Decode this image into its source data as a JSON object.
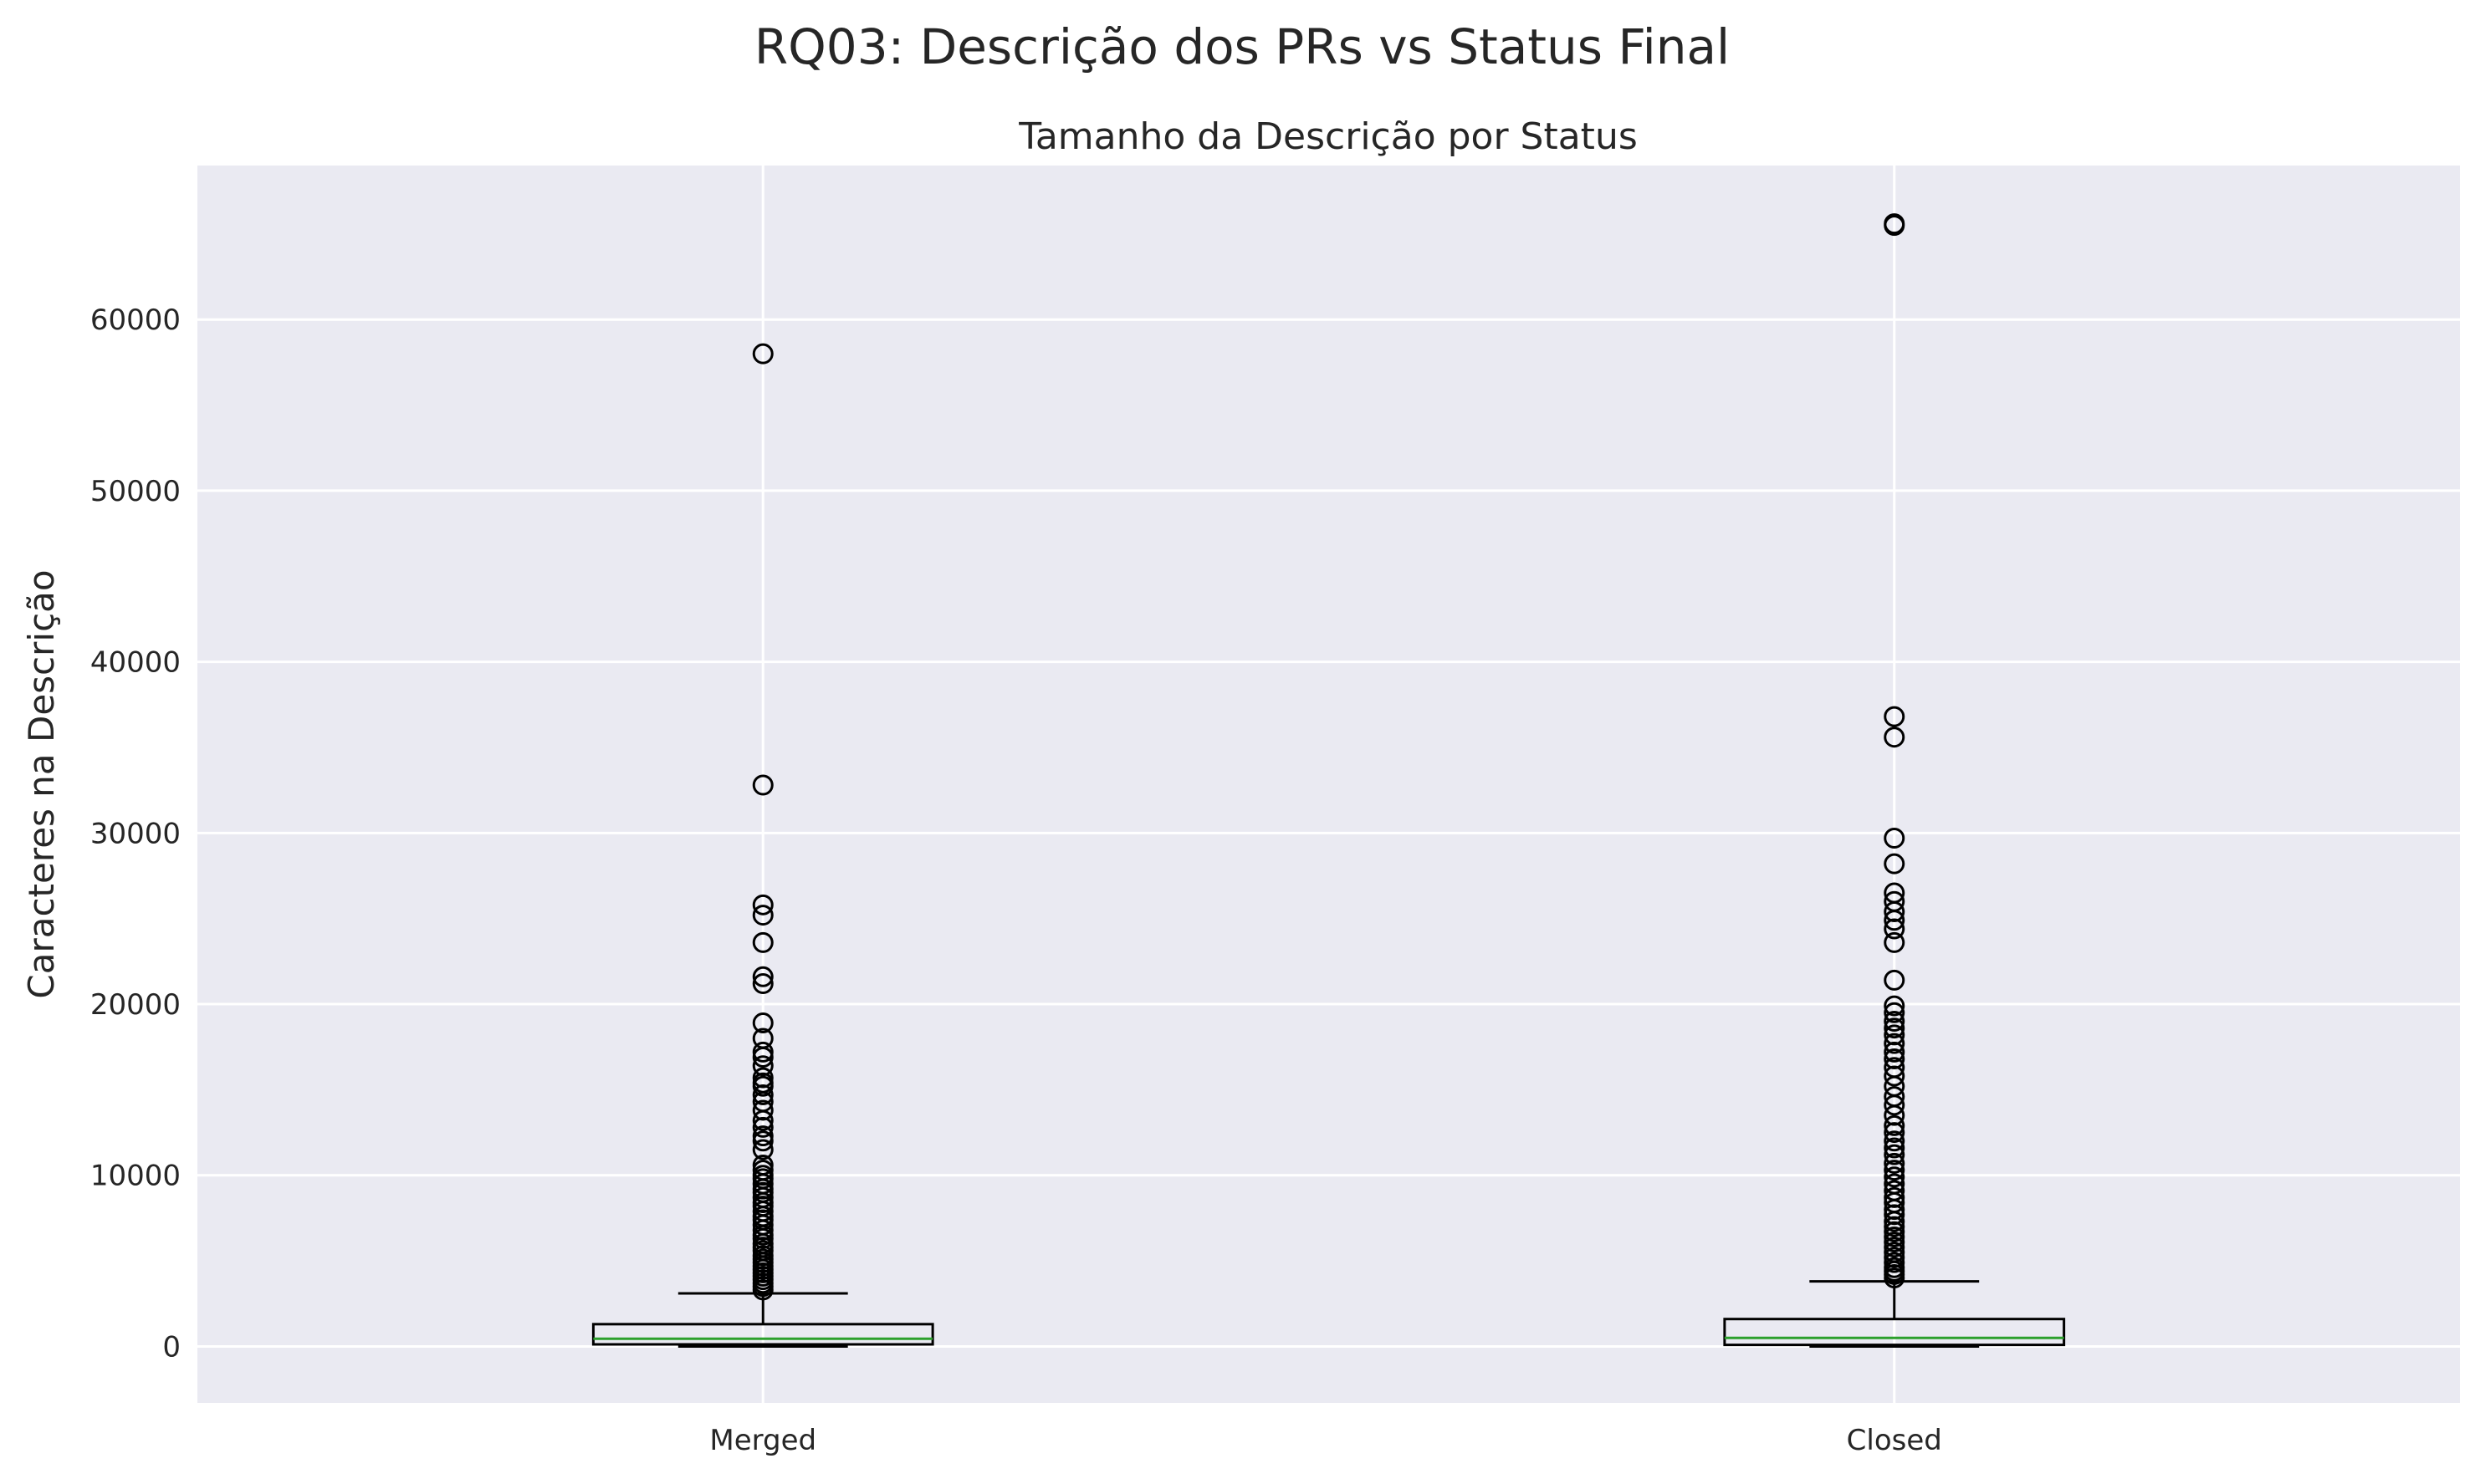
{
  "chart_data": {
    "type": "boxplot",
    "suptitle": "RQ03: Descrição dos PRs vs Status Final",
    "title": "Tamanho da Descrição por Status",
    "xlabel": "",
    "ylabel": "Caracteres na Descrição",
    "categories": [
      "Merged",
      "Closed"
    ],
    "ylim": [
      -3300,
      69000
    ],
    "yticks": [
      0,
      10000,
      20000,
      30000,
      40000,
      50000,
      60000
    ],
    "grid": true,
    "colors": {
      "background": "#EAEAF2",
      "grid": "#FFFFFF",
      "box": "#000000",
      "median": "#2CA02C"
    },
    "boxes": [
      {
        "name": "Merged",
        "min": 0,
        "q1": 120,
        "median": 450,
        "q3": 1300,
        "whisker_high": 3100,
        "outliers": [
          58000,
          32800,
          25800,
          25200,
          23600,
          21600,
          21200,
          18900,
          18000,
          17200,
          16900,
          16400,
          15700,
          15400,
          15200,
          14700,
          14300,
          13800,
          13200,
          12800,
          12300,
          12000,
          11500,
          10600,
          10300,
          10000,
          9800,
          9500,
          9200,
          9000,
          8700,
          8400,
          8200,
          7900,
          7600,
          7400,
          7100,
          6800,
          6500,
          6300,
          6000,
          5800,
          5600,
          5300,
          5100,
          4900,
          4700,
          4500,
          4300,
          4100,
          3900,
          3700,
          3500,
          3300
        ]
      },
      {
        "name": "Closed",
        "min": 0,
        "q1": 90,
        "median": 500,
        "q3": 1600,
        "whisker_high": 3800,
        "outliers": [
          65600,
          65500,
          36800,
          35600,
          29700,
          28200,
          26500,
          26000,
          25400,
          24900,
          24400,
          23600,
          21400,
          19900,
          19500,
          19000,
          18600,
          18200,
          17700,
          17200,
          16800,
          16300,
          15800,
          15200,
          14600,
          14100,
          13500,
          12900,
          12500,
          12000,
          11600,
          11200,
          10700,
          10300,
          9900,
          9500,
          9100,
          8700,
          8400,
          8000,
          7700,
          7300,
          7000,
          6700,
          6400,
          6100,
          5800,
          5500,
          5200,
          4900,
          4600,
          4400,
          4200,
          4000
        ]
      }
    ]
  }
}
